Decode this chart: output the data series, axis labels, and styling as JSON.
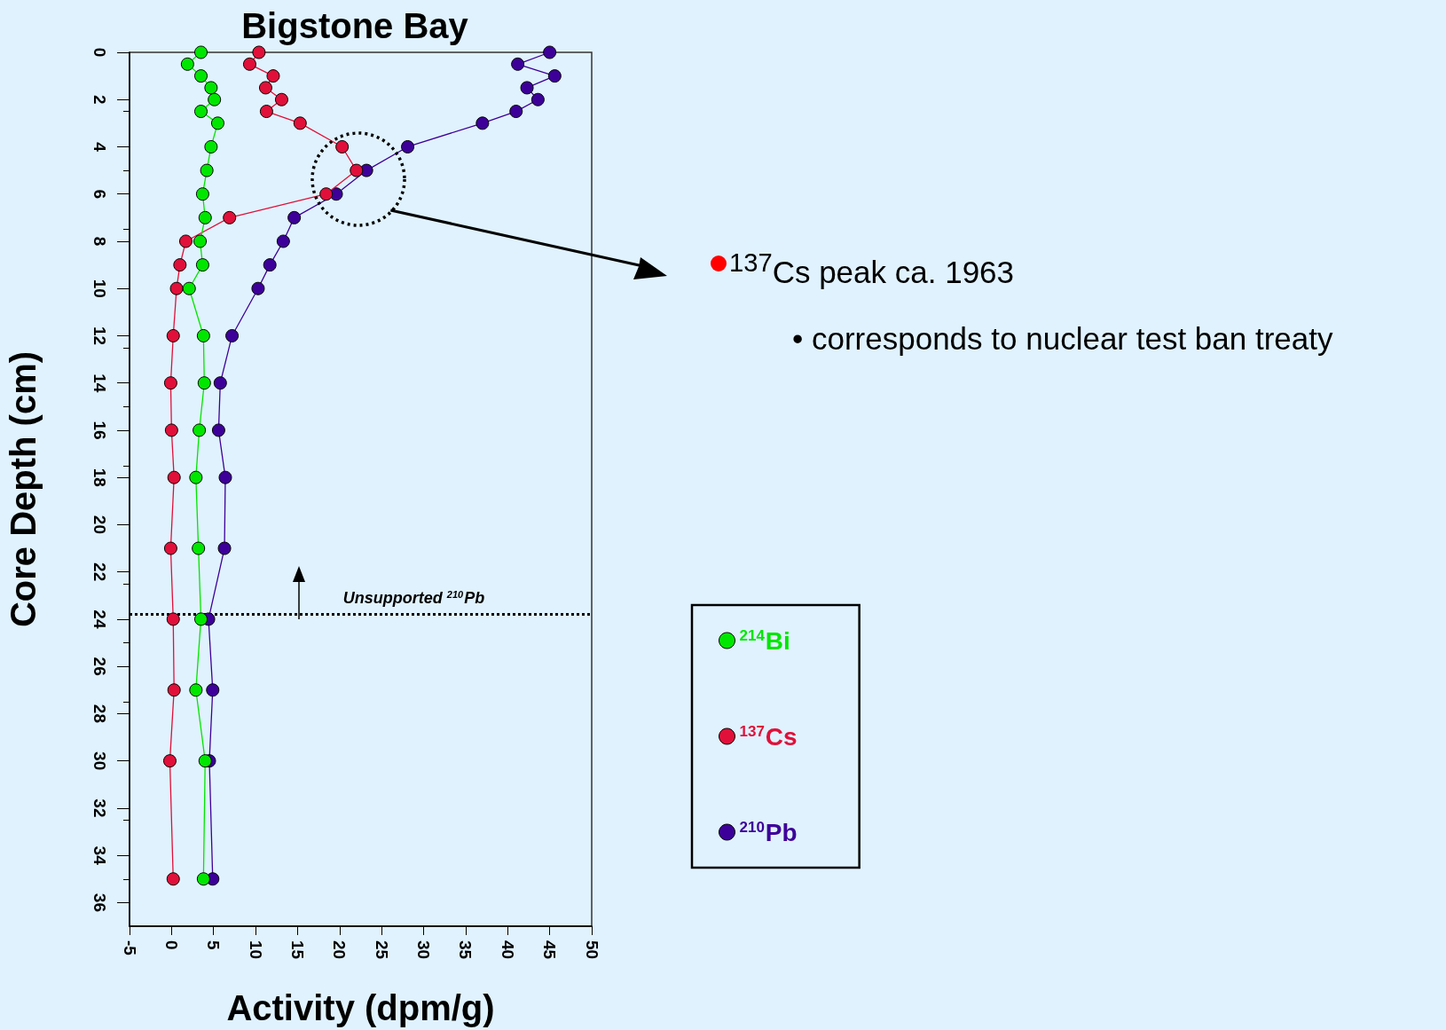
{
  "chart_data": {
    "type": "line",
    "title": "Bigstone Bay",
    "xlabel": "Activity (dpm/g)",
    "ylabel": "Core Depth (cm)",
    "xlim": [
      -5,
      50
    ],
    "xticks": [
      -5,
      0,
      5,
      10,
      15,
      20,
      25,
      30,
      35,
      40,
      45,
      50
    ],
    "ylim": [
      37,
      0
    ],
    "yticks": [
      0,
      2,
      4,
      6,
      8,
      10,
      12,
      14,
      16,
      18,
      20,
      22,
      24,
      26,
      28,
      30,
      32,
      34,
      36
    ],
    "grid": false,
    "legend": "right",
    "marker": "circle",
    "line_style": "solid",
    "series": [
      {
        "name": "$^{214}$Bi",
        "color": "#00e600",
        "x": [
          3.5,
          1.9,
          3.5,
          4.7,
          5.1,
          3.5,
          5.5,
          4.7,
          4.2,
          3.7,
          4.0,
          3.4,
          3.7,
          2.1,
          3.8,
          3.9,
          3.3,
          2.9,
          3.2,
          3.5,
          2.9,
          4.0,
          3.8
        ],
        "values": [
          0,
          0.5,
          1,
          1.5,
          2,
          2.5,
          3,
          4,
          5,
          6,
          7,
          8,
          9,
          10,
          12,
          14,
          16,
          18,
          21,
          24,
          27,
          30,
          35
        ]
      },
      {
        "name": "$^{137}$Cs",
        "color": "#e0103a",
        "x": [
          10.4,
          9.3,
          12.1,
          11.2,
          13.1,
          11.3,
          15.3,
          20.3,
          22.0,
          18.4,
          6.9,
          1.7,
          1.0,
          0.6,
          0.2,
          -0.1,
          0.0,
          0.3,
          -0.1,
          0.2,
          0.3,
          -0.2,
          0.2
        ],
        "values": [
          0,
          0.5,
          1,
          1.5,
          2,
          2.5,
          3,
          4,
          5,
          6,
          7,
          8,
          9,
          10,
          12,
          14,
          16,
          18,
          21,
          24,
          27,
          30,
          35
        ]
      },
      {
        "name": "$^{210}$Pb",
        "color": "#3d0099",
        "x": [
          45.0,
          41.2,
          45.6,
          42.3,
          43.6,
          41.0,
          37.0,
          28.1,
          23.2,
          19.6,
          14.6,
          13.3,
          11.7,
          10.3,
          7.2,
          5.8,
          5.6,
          6.4,
          6.3,
          4.4,
          4.9,
          4.5,
          4.9
        ],
        "values": [
          0,
          0.5,
          1,
          1.5,
          2,
          2.5,
          3,
          4,
          5,
          6,
          7,
          8,
          9,
          10,
          12,
          14,
          16,
          18,
          21,
          24,
          27,
          30,
          35
        ]
      }
    ],
    "ref_lines": [
      {
        "axis": "y",
        "value": 23.8,
        "label": "Unsupported $^{210}$Pb",
        "color": "#000000",
        "line_style": "dotted"
      }
    ],
    "annotations": [
      "$^{137}$Cs peak ca. 1963",
      "• corresponds to nuclear test ban treaty"
    ]
  }
}
